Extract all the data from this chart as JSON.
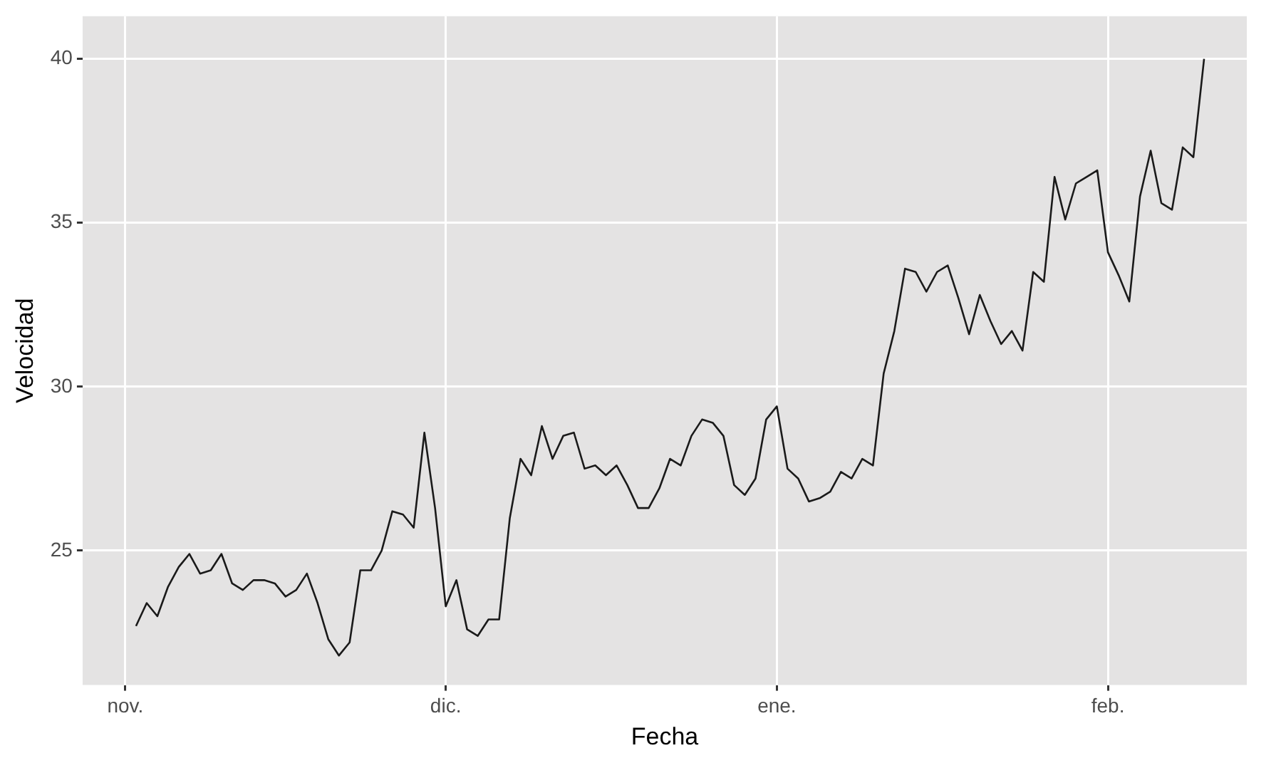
{
  "chart_data": {
    "type": "line",
    "xlabel": "Fecha",
    "ylabel": "Velocidad",
    "categories": [
      null,
      null,
      null,
      null,
      "nov.",
      null,
      null,
      null,
      null,
      null,
      null,
      null,
      null,
      null,
      null,
      null,
      null,
      null,
      null,
      null,
      null,
      null,
      null,
      null,
      null,
      null,
      null,
      null,
      null,
      null,
      null,
      null,
      null,
      null,
      "dic.",
      null,
      null,
      null,
      null,
      null,
      null,
      null,
      null,
      null,
      null,
      null,
      null,
      null,
      null,
      null,
      null,
      null,
      null,
      null,
      null,
      null,
      null,
      null,
      null,
      null,
      null,
      null,
      null,
      null,
      null,
      "ene.",
      null,
      null,
      null,
      null,
      null,
      null,
      null,
      null,
      null,
      null,
      null,
      null,
      null,
      null,
      null,
      null,
      null,
      null,
      null,
      null,
      null,
      null,
      null,
      null,
      null,
      null,
      null,
      null,
      null,
      null,
      "feb.",
      null,
      null,
      null,
      null,
      null,
      null,
      null,
      null,
      null,
      null,
      null,
      null,
      null
    ],
    "series": [
      {
        "color": "#1a1a1a",
        "values": [
          null,
          null,
          null,
          null,
          null,
          22.7,
          23.4,
          23.0,
          23.9,
          24.5,
          24.9,
          24.3,
          24.4,
          24.9,
          24.0,
          23.8,
          24.1,
          24.1,
          24.0,
          23.6,
          23.8,
          24.3,
          23.4,
          22.3,
          21.8,
          22.2,
          24.4,
          24.4,
          25.0,
          26.2,
          26.1,
          25.7,
          28.6,
          26.3,
          23.3,
          24.1,
          22.6,
          22.4,
          22.9,
          22.9,
          26.0,
          27.8,
          27.3,
          28.8,
          27.8,
          28.5,
          28.6,
          27.5,
          27.6,
          27.3,
          27.6,
          27.0,
          26.3,
          26.3,
          26.9,
          27.8,
          27.6,
          28.5,
          29.0,
          28.9,
          28.5,
          27.0,
          26.7,
          27.2,
          29.0,
          29.4,
          27.5,
          27.2,
          26.5,
          26.6,
          26.8,
          27.4,
          27.2,
          27.8,
          27.6,
          30.4,
          31.7,
          33.6,
          33.5,
          32.9,
          33.5,
          33.7,
          32.7,
          31.6,
          32.8,
          32.0,
          31.3,
          31.7,
          31.1,
          33.5,
          33.2,
          36.4,
          35.1,
          36.2,
          36.4,
          36.6,
          34.1,
          33.4,
          32.6,
          35.8,
          37.2,
          35.6,
          35.4,
          37.3,
          37.0,
          40.0,
          null,
          null,
          null,
          null
        ]
      }
    ],
    "ylim": [
      20.9,
      41.3
    ],
    "yticks": [
      25,
      30,
      35,
      40
    ],
    "grid": true,
    "legend": false,
    "marker": "none",
    "line_style": "solid"
  }
}
